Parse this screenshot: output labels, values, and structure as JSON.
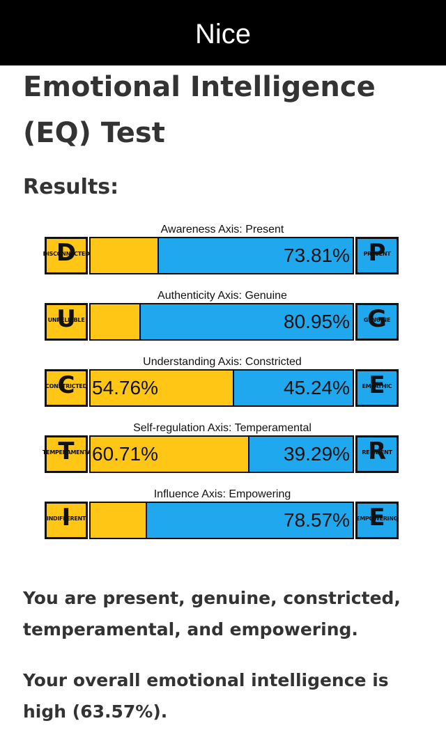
{
  "header": {
    "title": "Nice"
  },
  "page_title": "Emotional Intelligence (EQ) Test",
  "results_label": "Results:",
  "colors": {
    "left_pole": "#ffc615",
    "right_pole": "#1fa8ee",
    "header_bg": "#000000"
  },
  "axes": [
    {
      "title": "Awareness Axis: Present",
      "left": {
        "letter": "D",
        "label": "DISCONNECTED",
        "value": 26.19,
        "text": ""
      },
      "right": {
        "letter": "P",
        "label": "PRESENT",
        "value": 73.81,
        "text": "73.81%"
      }
    },
    {
      "title": "Authenticity Axis: Genuine",
      "left": {
        "letter": "U",
        "label": "UNRELIABLE",
        "value": 19.05,
        "text": ""
      },
      "right": {
        "letter": "G",
        "label": "GENUINE",
        "value": 80.95,
        "text": "80.95%"
      }
    },
    {
      "title": "Understanding Axis: Constricted",
      "left": {
        "letter": "C",
        "label": "CONSTRICTED",
        "value": 54.76,
        "text": "54.76%"
      },
      "right": {
        "letter": "E",
        "label": "EMPATHIC",
        "value": 45.24,
        "text": "45.24%"
      }
    },
    {
      "title": "Self-regulation Axis: Temperamental",
      "left": {
        "letter": "T",
        "label": "TEMPERAMENTAL",
        "value": 60.71,
        "text": "60.71%"
      },
      "right": {
        "letter": "R",
        "label": "RESILIENT",
        "value": 39.29,
        "text": "39.29%"
      }
    },
    {
      "title": "Influence Axis: Empowering",
      "left": {
        "letter": "I",
        "label": "INDIFFERENT",
        "value": 21.43,
        "text": ""
      },
      "right": {
        "letter": "E",
        "label": "EMPOWERING",
        "value": 78.57,
        "text": "78.57%"
      }
    }
  ],
  "summary": "You are present, genuine, constricted, temperamental, and empowering.",
  "overall": "Your overall emotional intelligence is high (63.57%)."
}
